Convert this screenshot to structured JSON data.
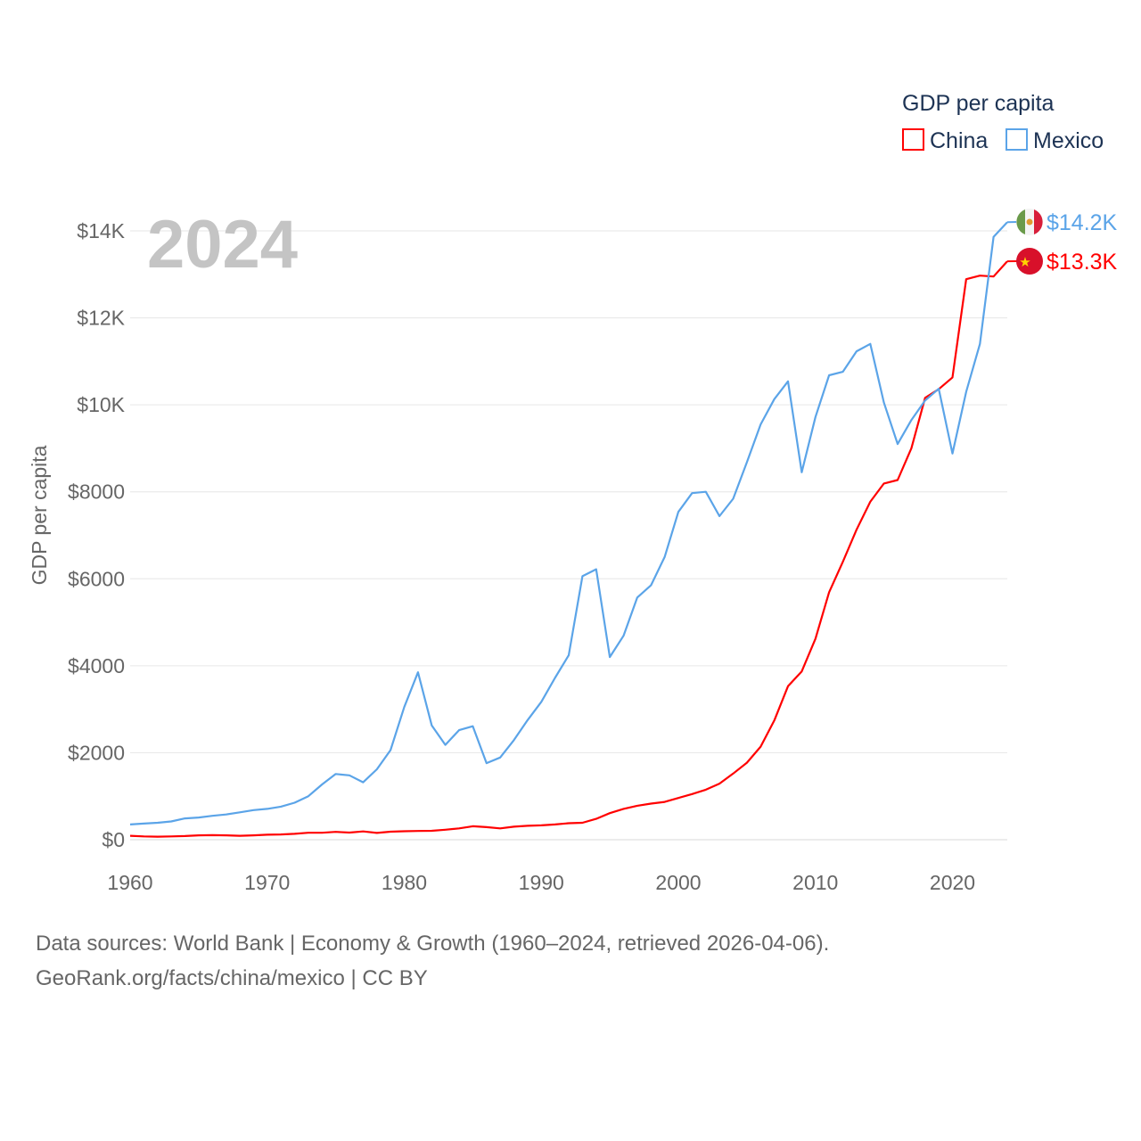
{
  "chart_data": {
    "type": "line",
    "title": "GDP per capita",
    "ylabel": "GDP per capita",
    "xlabel": "",
    "year_label": "2024",
    "xlim": [
      1960,
      2024
    ],
    "ylim": [
      0,
      14000
    ],
    "x_ticks": [
      1960,
      1970,
      1980,
      1990,
      2000,
      2010,
      2020
    ],
    "x_tick_labels": [
      "1960",
      "1970",
      "1980",
      "1990",
      "2000",
      "2010",
      "2020"
    ],
    "y_ticks": [
      0,
      2000,
      4000,
      6000,
      8000,
      10000,
      12000,
      14000
    ],
    "y_tick_labels": [
      "$0",
      "$2000",
      "$4000",
      "$6000",
      "$8000",
      "$10K",
      "$12K",
      "$14K"
    ],
    "grid": true,
    "legend": {
      "title": "GDP per capita",
      "position": "top-right"
    },
    "x": [
      1960,
      1961,
      1962,
      1963,
      1964,
      1965,
      1966,
      1967,
      1968,
      1969,
      1970,
      1971,
      1972,
      1973,
      1974,
      1975,
      1976,
      1977,
      1978,
      1979,
      1980,
      1981,
      1982,
      1983,
      1984,
      1985,
      1986,
      1987,
      1988,
      1989,
      1990,
      1991,
      1992,
      1993,
      1994,
      1995,
      1996,
      1997,
      1998,
      1999,
      2000,
      2001,
      2002,
      2003,
      2004,
      2005,
      2006,
      2007,
      2008,
      2009,
      2010,
      2011,
      2012,
      2013,
      2014,
      2015,
      2016,
      2017,
      2018,
      2019,
      2020,
      2021,
      2022,
      2023,
      2024
    ],
    "series": [
      {
        "name": "China",
        "color": "#ff0000",
        "end_label": "$13.3K",
        "flag": "china-flag",
        "values": [
          90,
          75,
          70,
          75,
          85,
          100,
          105,
          100,
          90,
          100,
          115,
          120,
          135,
          160,
          160,
          180,
          165,
          190,
          155,
          185,
          195,
          200,
          205,
          230,
          260,
          310,
          290,
          260,
          300,
          320,
          330,
          350,
          380,
          390,
          480,
          610,
          710,
          780,
          830,
          870,
          960,
          1050,
          1150,
          1290,
          1520,
          1770,
          2140,
          2740,
          3530,
          3870,
          4620,
          5690,
          6390,
          7130,
          7770,
          8190,
          8270,
          9000,
          10160,
          10360,
          10630,
          12890,
          12970,
          12950,
          13300
        ]
      },
      {
        "name": "Mexico",
        "color": "#5ba4e8",
        "end_label": "$14.2K",
        "flag": "mexico-flag",
        "values": [
          350,
          370,
          390,
          420,
          490,
          510,
          550,
          580,
          630,
          680,
          710,
          760,
          850,
          1000,
          1270,
          1510,
          1480,
          1320,
          1620,
          2060,
          3050,
          3850,
          2630,
          2180,
          2520,
          2610,
          1760,
          1890,
          2290,
          2750,
          3170,
          3720,
          4240,
          6060,
          6220,
          4200,
          4690,
          5570,
          5850,
          6500,
          7540,
          7970,
          8000,
          7440,
          7840,
          8680,
          9550,
          10130,
          10540,
          8450,
          9720,
          10680,
          10760,
          11230,
          11400,
          10050,
          9100,
          9650,
          10100,
          10370,
          8880,
          10300,
          11400,
          13860,
          14200
        ]
      }
    ]
  },
  "footer": {
    "line1": "Data sources: World Bank | Economy & Growth (1960–2024, retrieved 2026-04-06).",
    "line2": "GeoRank.org/facts/china/mexico | CC BY"
  }
}
